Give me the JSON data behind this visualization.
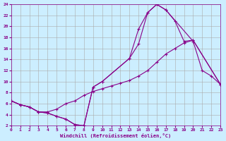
{
  "xlabel": "Windchill (Refroidissement éolien,°C)",
  "bg_color": "#cceeff",
  "grid_color": "#aaaaaa",
  "line_color": "#880088",
  "xlim": [
    0,
    23
  ],
  "ylim": [
    2,
    24
  ],
  "xticks": [
    0,
    1,
    2,
    3,
    4,
    5,
    6,
    7,
    8,
    9,
    10,
    11,
    12,
    13,
    14,
    15,
    16,
    17,
    18,
    19,
    20,
    21,
    22,
    23
  ],
  "yticks": [
    2,
    4,
    6,
    8,
    10,
    12,
    14,
    16,
    18,
    20,
    22,
    24
  ],
  "line1_x": [
    0,
    1,
    2,
    3,
    4,
    5,
    6,
    7,
    8,
    9,
    10,
    13,
    14,
    15,
    16,
    17,
    20,
    21,
    22,
    23
  ],
  "line1_y": [
    6.5,
    5.8,
    5.4,
    4.5,
    4.3,
    3.7,
    3.2,
    2.2,
    2.0,
    9.0,
    10.0,
    14.2,
    19.5,
    22.5,
    24.0,
    23.0,
    17.3,
    12.0,
    11.0,
    9.5
  ],
  "line2_x": [
    0,
    1,
    2,
    3,
    4,
    5,
    6,
    7,
    8,
    9,
    10,
    13,
    14,
    15,
    16,
    17,
    18,
    19,
    20,
    23
  ],
  "line2_y": [
    6.5,
    5.8,
    5.4,
    4.5,
    4.3,
    3.7,
    3.2,
    2.2,
    2.0,
    9.0,
    10.0,
    14.2,
    16.8,
    22.5,
    24.0,
    23.0,
    21.0,
    17.3,
    17.5,
    9.5
  ],
  "line3_x": [
    0,
    1,
    2,
    3,
    4,
    5,
    6,
    7,
    8,
    9,
    10,
    11,
    12,
    13,
    14,
    15,
    16,
    17,
    18,
    19,
    20,
    23
  ],
  "line3_y": [
    6.5,
    5.8,
    5.4,
    4.5,
    4.5,
    5.0,
    6.0,
    6.5,
    7.5,
    8.2,
    8.7,
    9.2,
    9.7,
    10.2,
    11.0,
    12.0,
    13.5,
    15.0,
    16.0,
    17.0,
    17.5,
    9.5
  ]
}
